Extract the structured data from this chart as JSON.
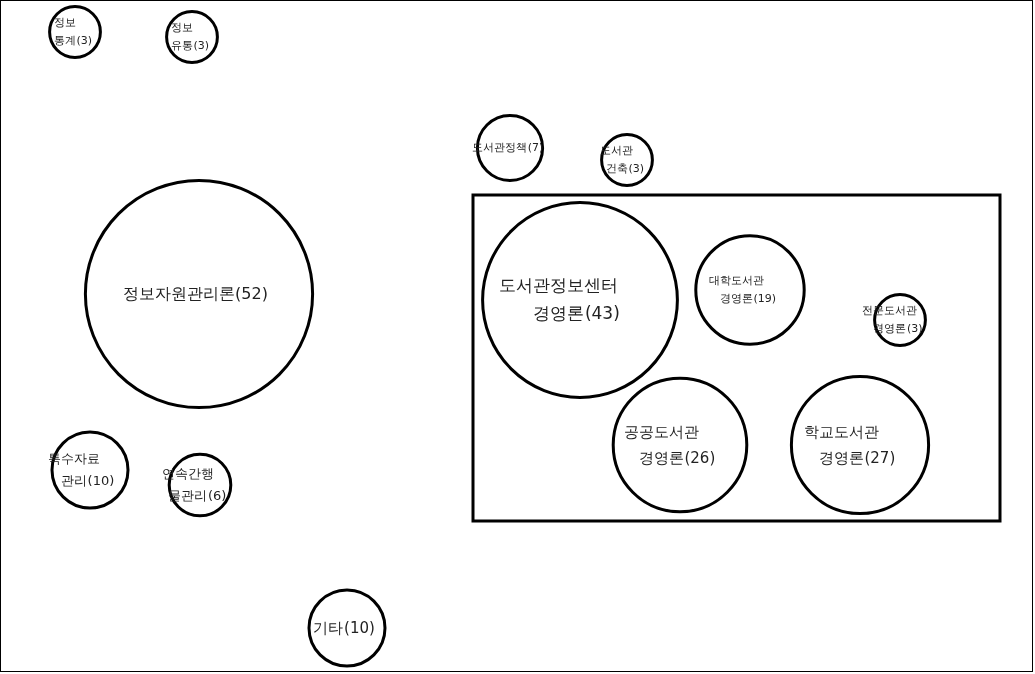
{
  "chart_data": {
    "type": "other",
    "categories": [
      "정보통계",
      "정보유통",
      "도서관정책",
      "도서관건축",
      "정보자원관리론",
      "도서관정보센터경영론",
      "대학도서관경영론",
      "전문도서관경영론",
      "공공도서관경영론",
      "학교도서관경영론",
      "특수자료관리",
      "연속간행물관리",
      "기타"
    ],
    "values": [
      3,
      3,
      7,
      3,
      52,
      43,
      19,
      3,
      26,
      27,
      10,
      6,
      10
    ],
    "value_labels": [
      "(3)",
      "(3)",
      "(7)",
      "(3)",
      "(52)",
      "(43)",
      "(19)",
      "(3)",
      "(26)",
      "(27)",
      "(10)",
      "(6)",
      "(10)"
    ]
  }
}
